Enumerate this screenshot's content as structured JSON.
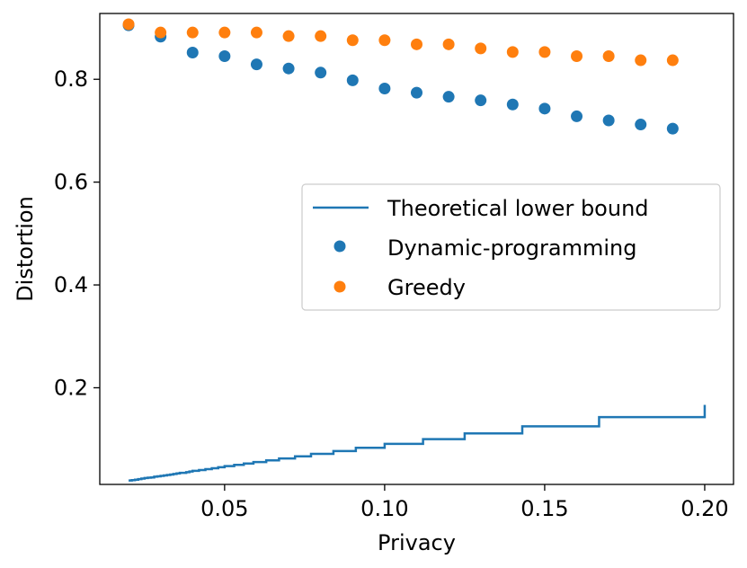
{
  "chart_data": {
    "type": "scatter",
    "title": "",
    "xlabel": "Privacy",
    "ylabel": "Distortion",
    "xlim": [
      0.011,
      0.209
    ],
    "ylim": [
      0.012,
      0.928
    ],
    "grid": false,
    "legend_position": "center-right",
    "xticks": [
      {
        "value": 0.05,
        "label": "0.05"
      },
      {
        "value": 0.1,
        "label": "0.10"
      },
      {
        "value": 0.15,
        "label": "0.15"
      },
      {
        "value": 0.2,
        "label": "0.20"
      }
    ],
    "yticks": [
      {
        "value": 0.2,
        "label": "0.2"
      },
      {
        "value": 0.4,
        "label": "0.4"
      },
      {
        "value": 0.6,
        "label": "0.6"
      },
      {
        "value": 0.8,
        "label": "0.8"
      }
    ],
    "series": [
      {
        "name": "Theoretical lower bound",
        "kind": "step-line",
        "color": "#1f77b4",
        "x_start": 0.02,
        "x_end": 0.2,
        "x_step": 0.001,
        "formula": "distortion = 1 / (ceil(1 / privacy) + 1)"
      },
      {
        "name": "Dynamic-programming",
        "kind": "scatter",
        "color": "#1f77b4",
        "x": [
          0.02,
          0.03,
          0.04,
          0.05,
          0.06,
          0.07,
          0.08,
          0.09,
          0.1,
          0.11,
          0.12,
          0.13,
          0.14,
          0.15,
          0.16,
          0.17,
          0.18,
          0.19
        ],
        "y": [
          0.905,
          0.883,
          0.852,
          0.845,
          0.829,
          0.821,
          0.813,
          0.798,
          0.782,
          0.774,
          0.766,
          0.759,
          0.751,
          0.743,
          0.728,
          0.72,
          0.712,
          0.704
        ]
      },
      {
        "name": "Greedy",
        "kind": "scatter",
        "color": "#ff7f0e",
        "x": [
          0.02,
          0.03,
          0.04,
          0.05,
          0.06,
          0.07,
          0.08,
          0.09,
          0.1,
          0.11,
          0.12,
          0.13,
          0.14,
          0.15,
          0.16,
          0.17,
          0.18,
          0.19
        ],
        "y": [
          0.907,
          0.891,
          0.891,
          0.891,
          0.891,
          0.884,
          0.884,
          0.876,
          0.876,
          0.868,
          0.868,
          0.86,
          0.853,
          0.853,
          0.845,
          0.845,
          0.837,
          0.837
        ]
      }
    ],
    "legend": [
      {
        "label": "Theoretical lower bound",
        "marker": "line",
        "color": "#1f77b4"
      },
      {
        "label": "Dynamic-programming",
        "marker": "dot",
        "color": "#1f77b4"
      },
      {
        "label": "Greedy",
        "marker": "dot",
        "color": "#ff7f0e"
      }
    ]
  }
}
